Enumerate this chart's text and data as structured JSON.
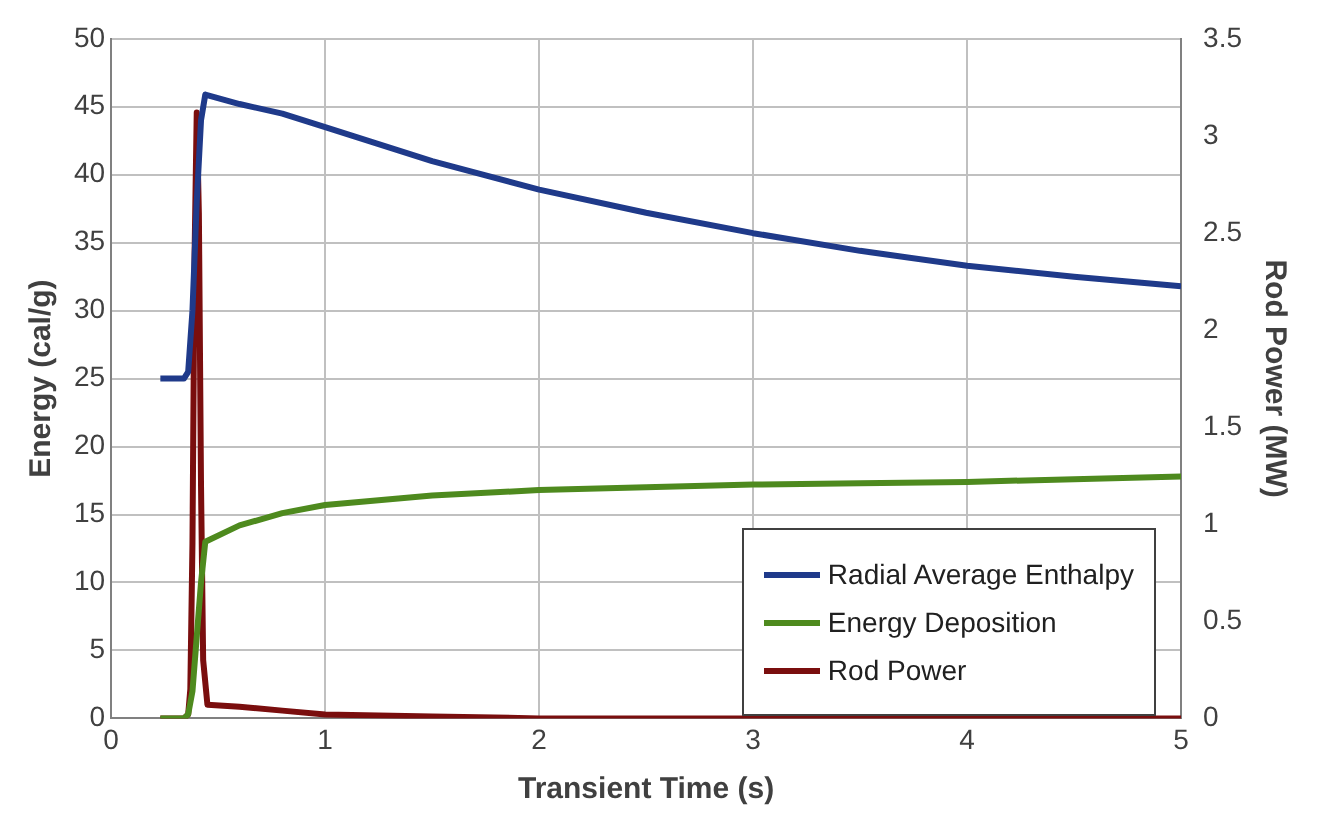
{
  "chart_data": {
    "type": "line",
    "xlabel": "Transient Time (s)",
    "ylabel": "Energy (cal/g)",
    "y2label": "Rod Power (MW)",
    "xlim": [
      0,
      5
    ],
    "xticks": [
      0,
      1,
      2,
      3,
      4,
      5
    ],
    "ylim": [
      0,
      50
    ],
    "yticks": [
      0,
      5,
      10,
      15,
      20,
      25,
      30,
      35,
      40,
      45,
      50
    ],
    "y2lim": [
      0,
      3.5
    ],
    "y2ticks": [
      0,
      0.5,
      1,
      1.5,
      2,
      2.5,
      3,
      3.5
    ],
    "grid": true,
    "legend": "bottom right",
    "marker": "none",
    "line_style": "solid",
    "series": [
      {
        "name": "Radial Average Enthalpy",
        "color": "#1f3a8a",
        "x": [
          0.23,
          0.34,
          0.36,
          0.38,
          0.4,
          0.42,
          0.44,
          0.6,
          0.8,
          1,
          1.5,
          2,
          2.5,
          3,
          3.5,
          4,
          4.5,
          5
        ],
        "values": [
          25,
          25,
          25.5,
          30,
          38,
          44,
          45.9,
          45.2,
          44.5,
          43.5,
          41,
          38.9,
          37.2,
          35.7,
          34.4,
          33.3,
          32.5,
          31.8
        ]
      },
      {
        "name": "Energy Deposition",
        "color": "#4e8a1e",
        "x": [
          0.23,
          0.34,
          0.36,
          0.38,
          0.4,
          0.42,
          0.44,
          0.6,
          0.8,
          1,
          1.5,
          2,
          2.5,
          3,
          3.5,
          4,
          4.5,
          5
        ],
        "values": [
          0,
          0,
          0.3,
          2,
          6,
          10,
          13,
          14.2,
          15.1,
          15.7,
          16.4,
          16.8,
          17,
          17.2,
          17.3,
          17.4,
          17.6,
          17.8
        ]
      },
      {
        "name": "Rod Power",
        "color": "#7a0e0e",
        "axis": "y2",
        "x": [
          0.23,
          0.34,
          0.36,
          0.37,
          0.38,
          0.39,
          0.4,
          0.41,
          0.42,
          0.43,
          0.45,
          0.6,
          0.8,
          1,
          1.5,
          2,
          3,
          4,
          5
        ],
        "values": [
          0,
          0,
          0.02,
          0.15,
          0.9,
          2.4,
          3.12,
          2.6,
          1.2,
          0.3,
          0.07,
          0.06,
          0.04,
          0.02,
          0.01,
          0,
          0,
          0,
          0
        ]
      }
    ]
  }
}
